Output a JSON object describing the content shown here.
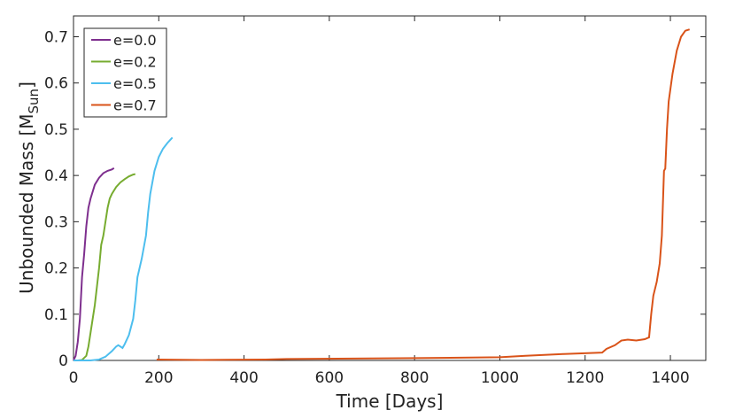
{
  "chart_data": {
    "type": "line",
    "xlabel": "Time [Days]",
    "ylabel": "Unbounded Mass [M",
    "ylabel_sub": "Sun",
    "ylabel_end": "]",
    "xlim": [
      0,
      1483
    ],
    "ylim": [
      0,
      0.745
    ],
    "xticks": [
      0,
      200,
      400,
      600,
      800,
      1000,
      1200,
      1400
    ],
    "yticks": [
      0,
      0.1,
      0.2,
      0.3,
      0.4,
      0.5,
      0.6,
      0.7
    ],
    "grid": false,
    "legend": "upper left",
    "series": [
      {
        "name": "e=0.0",
        "color": "#7e2f8e",
        "x": [
          0,
          5,
          10,
          15,
          20,
          25,
          30,
          35,
          40,
          50,
          60,
          70,
          80,
          90,
          95
        ],
        "values": [
          0,
          0.01,
          0.04,
          0.09,
          0.18,
          0.23,
          0.29,
          0.33,
          0.35,
          0.38,
          0.395,
          0.405,
          0.41,
          0.413,
          0.416
        ]
      },
      {
        "name": "e=0.2",
        "color": "#77ac30",
        "x": [
          10,
          20,
          30,
          35,
          40,
          50,
          55,
          60,
          65,
          70,
          75,
          80,
          85,
          90,
          100,
          110,
          120,
          130,
          140,
          145
        ],
        "values": [
          0,
          0.001,
          0.01,
          0.03,
          0.06,
          0.12,
          0.16,
          0.2,
          0.25,
          0.27,
          0.3,
          0.33,
          0.35,
          0.36,
          0.375,
          0.385,
          0.392,
          0.398,
          0.402,
          0.403
        ]
      },
      {
        "name": "e=0.5",
        "color": "#4dbeee",
        "x": [
          0,
          40,
          60,
          75,
          90,
          100,
          105,
          110,
          115,
          120,
          130,
          140,
          145,
          150,
          160,
          170,
          175,
          180,
          190,
          200,
          210,
          220,
          232
        ],
        "values": [
          0,
          0,
          0.002,
          0.008,
          0.02,
          0.03,
          0.033,
          0.03,
          0.027,
          0.035,
          0.055,
          0.09,
          0.13,
          0.18,
          0.22,
          0.27,
          0.32,
          0.36,
          0.41,
          0.44,
          0.458,
          0.47,
          0.482
        ]
      },
      {
        "name": "e=0.7",
        "color": "#d95319",
        "x": [
          195,
          300,
          450,
          500,
          800,
          1000,
          1060,
          1150,
          1240,
          1250,
          1270,
          1285,
          1300,
          1320,
          1340,
          1350,
          1355,
          1360,
          1368,
          1375,
          1380,
          1385,
          1388,
          1392,
          1396,
          1405,
          1415,
          1425,
          1435,
          1445
        ],
        "values": [
          0.002,
          0.001,
          0.002,
          0.003,
          0.005,
          0.007,
          0.01,
          0.014,
          0.017,
          0.025,
          0.033,
          0.043,
          0.045,
          0.043,
          0.046,
          0.05,
          0.1,
          0.14,
          0.17,
          0.21,
          0.27,
          0.41,
          0.415,
          0.5,
          0.56,
          0.62,
          0.67,
          0.7,
          0.713,
          0.716
        ]
      }
    ]
  }
}
